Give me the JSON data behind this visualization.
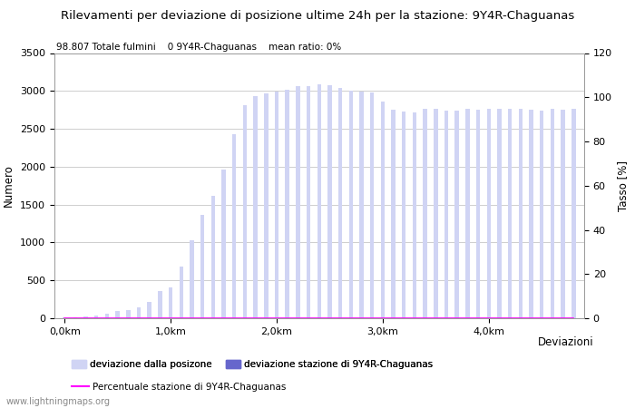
{
  "title": "Rilevamenti per deviazione di posizione ultime 24h per la stazione: 9Y4R-Chaguanas",
  "subtitle": "98.807 Totale fulmini    0 9Y4R-Chaguanas    mean ratio: 0%",
  "ylabel_left": "Numero",
  "ylabel_right": "Tasso [%]",
  "xlabel_right": "Deviazioni",
  "ylim_left": [
    0,
    3500
  ],
  "ylim_right": [
    0,
    120
  ],
  "yticks_left": [
    0,
    500,
    1000,
    1500,
    2000,
    2500,
    3000,
    3500
  ],
  "yticks_right": [
    0,
    20,
    40,
    60,
    80,
    100,
    120
  ],
  "xtick_labels": [
    "0,0km",
    "1,0km",
    "2,0km",
    "3,0km",
    "4,0km"
  ],
  "xtick_positions": [
    0,
    10,
    20,
    30,
    40
  ],
  "watermark": "www.lightningmaps.org",
  "bar_color_light": "#d0d4f4",
  "bar_color_dark": "#6666cc",
  "line_color": "#ff00ff",
  "grid_color": "#bbbbbb",
  "bar_values": [
    8,
    12,
    20,
    35,
    60,
    95,
    110,
    145,
    210,
    360,
    410,
    680,
    1030,
    1370,
    1620,
    1960,
    2430,
    2810,
    2930,
    2970,
    2990,
    3020,
    3060,
    3060,
    3090,
    3070,
    3040,
    3000,
    2990,
    2980,
    2860,
    2750,
    2730,
    2720,
    2770,
    2770,
    2740,
    2740,
    2770,
    2750,
    2760,
    2760,
    2770,
    2770,
    2750,
    2740,
    2770,
    2750,
    2760
  ],
  "bar_values_dark": [
    0,
    0,
    0,
    0,
    0,
    0,
    0,
    0,
    0,
    0,
    0,
    0,
    0,
    0,
    0,
    0,
    0,
    0,
    0,
    0,
    0,
    0,
    0,
    0,
    0,
    0,
    0,
    0,
    0,
    0,
    0,
    0,
    0,
    0,
    0,
    0,
    0,
    0,
    0,
    0,
    0,
    0,
    0,
    0,
    0,
    0,
    0,
    0,
    0
  ],
  "ratio_values": [
    0,
    0,
    0,
    0,
    0,
    0,
    0,
    0,
    0,
    0,
    0,
    0,
    0,
    0,
    0,
    0,
    0,
    0,
    0,
    0,
    0,
    0,
    0,
    0,
    0,
    0,
    0,
    0,
    0,
    0,
    0,
    0,
    0,
    0,
    0,
    0,
    0,
    0,
    0,
    0,
    0,
    0,
    0,
    0,
    0,
    0,
    0,
    0,
    0
  ],
  "legend1": "deviazione dalla posizone",
  "legend2": "deviazione stazione di 9Y4R-Chaguanas",
  "legend3": "Percentuale stazione di 9Y4R-Chaguanas",
  "bg_color": "#ffffff",
  "spine_color": "#999999"
}
